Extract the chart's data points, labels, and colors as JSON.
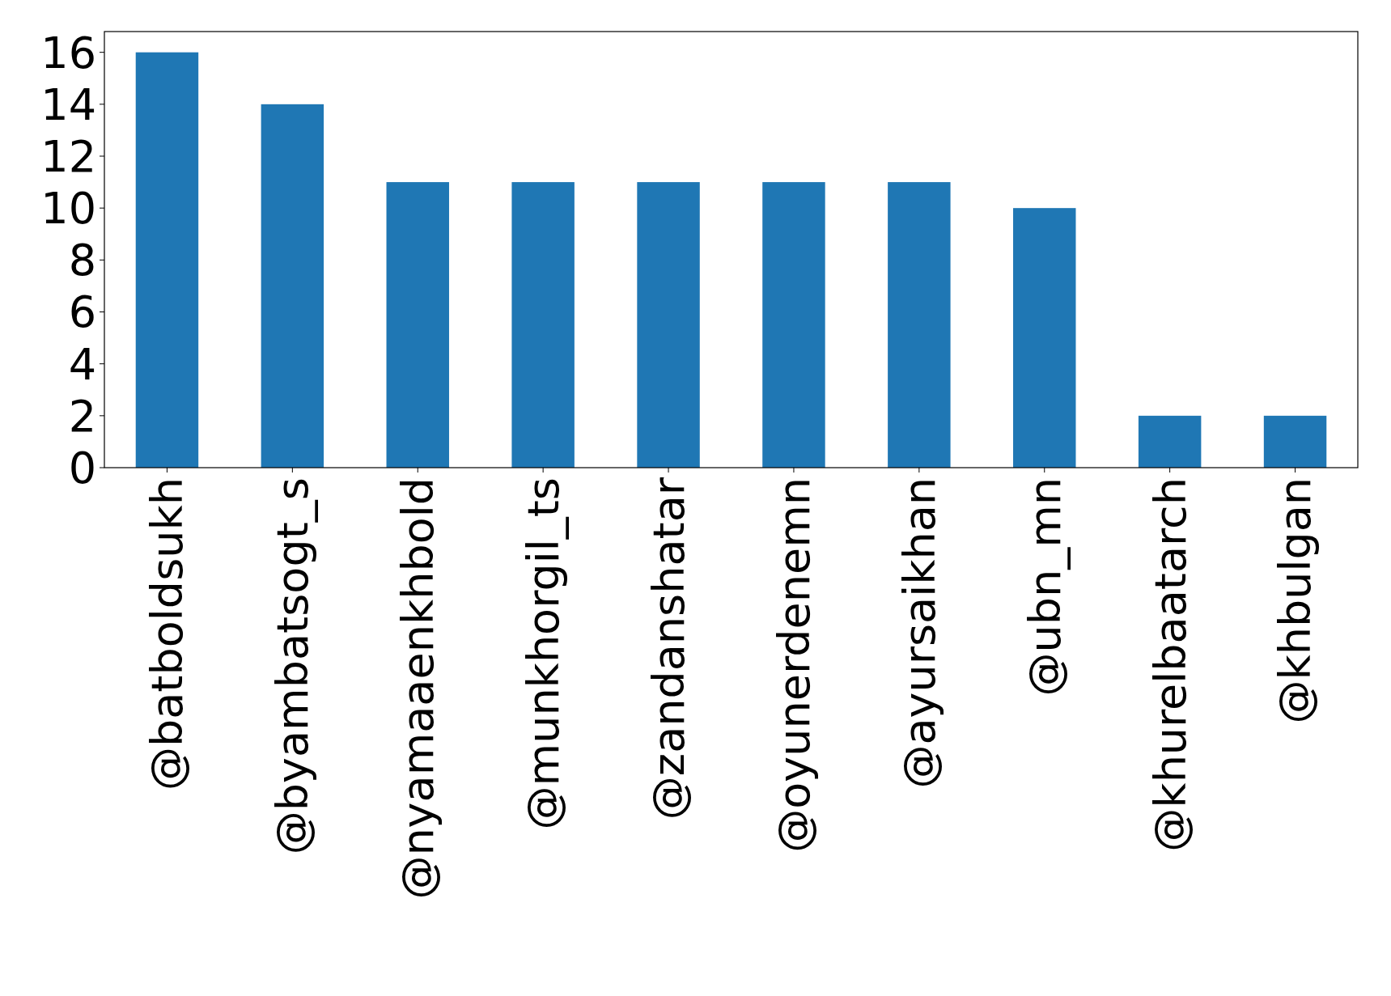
{
  "chart_data": {
    "type": "bar",
    "categories": [
      "@batboldsukh",
      "@byambatsogt_s",
      "@nyamaaenkhbold",
      "@munkhorgil_ts",
      "@zandanshatar",
      "@oyunerdenemn",
      "@ayursaikhan",
      "@ubn_mn",
      "@khurelbaatarch",
      "@khbulgan"
    ],
    "values": [
      16,
      14,
      11,
      11,
      11,
      11,
      11,
      10,
      2,
      2
    ],
    "color": "#1f77b4",
    "ylim": [
      0,
      16.8
    ],
    "yticks": [
      0,
      2,
      4,
      6,
      8,
      10,
      12,
      14,
      16
    ],
    "grid": false
  }
}
